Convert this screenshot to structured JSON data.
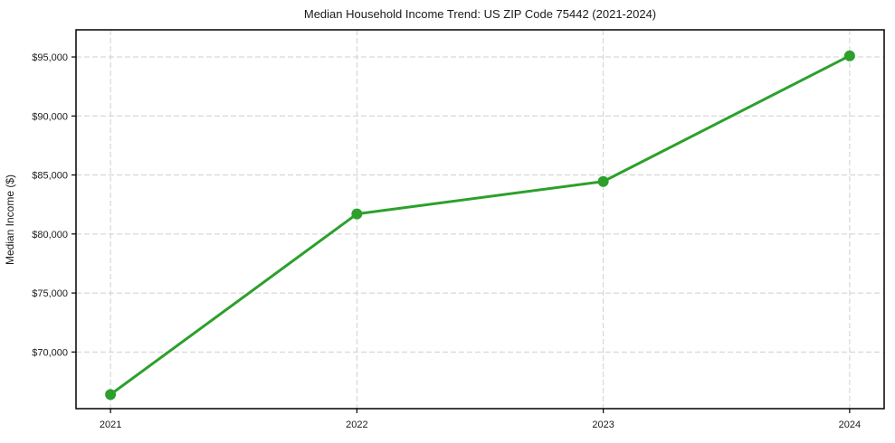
{
  "chart_data": {
    "type": "line",
    "title": "Median Household Income Trend: US ZIP Code 75442 (2021-2024)",
    "xlabel": "",
    "ylabel": "Median Income ($)",
    "categories": [
      "2021",
      "2022",
      "2023",
      "2024"
    ],
    "x": [
      2021,
      2022,
      2023,
      2024
    ],
    "values": [
      66400,
      81700,
      84450,
      95100
    ],
    "yticks": [
      70000,
      75000,
      80000,
      85000,
      90000,
      95000
    ],
    "ytick_labels": [
      "$70,000",
      "$75,000",
      "$80,000",
      "$85,000",
      "$90,000",
      "$95,000"
    ],
    "xlim": [
      2020.86,
      2024.14
    ],
    "ylim": [
      65200,
      97300
    ],
    "grid": true,
    "grid_style": "dashed",
    "legend": "none",
    "line_color": "#2ca02c",
    "marker": "circle",
    "marker_size": 6,
    "line_width": 3,
    "grid_color": "#cfcfcf",
    "axis_color": "#000000",
    "text_color": "#1a1a1a",
    "background": "#ffffff"
  }
}
